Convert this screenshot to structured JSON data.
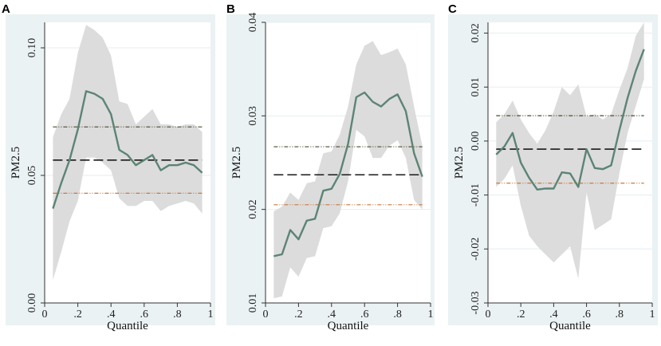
{
  "chart_data": [
    {
      "type": "line",
      "panel_label": "A",
      "xlabel": "Quantile",
      "ylabel": "PM2.5",
      "xlim": [
        0,
        1
      ],
      "ylim": [
        0,
        0.11
      ],
      "xticks": [
        0,
        0.2,
        0.4,
        0.6,
        0.8,
        1
      ],
      "xtick_labels": [
        "0",
        ".2",
        ".4",
        ".6",
        ".8",
        "1"
      ],
      "yticks": [
        0,
        0.05,
        0.1
      ],
      "ytick_labels": [
        "0.00",
        "0.05",
        "0.10"
      ],
      "grid": true,
      "x": [
        0.05,
        0.1,
        0.15,
        0.2,
        0.25,
        0.3,
        0.35,
        0.4,
        0.45,
        0.5,
        0.55,
        0.6,
        0.65,
        0.7,
        0.75,
        0.8,
        0.85,
        0.9,
        0.95
      ],
      "estimate": [
        0.037,
        0.047,
        0.056,
        0.068,
        0.083,
        0.082,
        0.08,
        0.074,
        0.06,
        0.058,
        0.054,
        0.056,
        0.058,
        0.052,
        0.054,
        0.054,
        0.055,
        0.054,
        0.051
      ],
      "ci_upper": [
        0.065,
        0.074,
        0.08,
        0.098,
        0.109,
        0.107,
        0.104,
        0.097,
        0.079,
        0.078,
        0.07,
        0.073,
        0.076,
        0.07,
        0.07,
        0.069,
        0.07,
        0.07,
        0.067
      ],
      "ci_lower": [
        0.009,
        0.02,
        0.032,
        0.04,
        0.057,
        0.057,
        0.055,
        0.052,
        0.041,
        0.038,
        0.038,
        0.04,
        0.04,
        0.036,
        0.038,
        0.039,
        0.04,
        0.039,
        0.035
      ],
      "ols_estimate": 0.056,
      "ols_upper": 0.069,
      "ols_lower": 0.043,
      "colors": {
        "line": "#5c8474",
        "band": "#dcdcdc",
        "ols": "#1a1a1a",
        "ols_upper": "#4a4a30",
        "ols_lower": "#c8793c",
        "plot_bg": "#ffffff",
        "panel_bg": "#eaf2f3"
      }
    },
    {
      "type": "line",
      "panel_label": "B",
      "xlabel": "Quantile",
      "ylabel": "PM2.5",
      "xlim": [
        0,
        1
      ],
      "ylim": [
        0.01,
        0.04
      ],
      "xticks": [
        0,
        0.2,
        0.4,
        0.6,
        0.8,
        1
      ],
      "xtick_labels": [
        "0",
        ".2",
        ".4",
        ".6",
        ".8",
        "1"
      ],
      "yticks": [
        0.01,
        0.02,
        0.03,
        0.04
      ],
      "ytick_labels": [
        "0.01",
        "0.02",
        "0.03",
        "0.04"
      ],
      "grid": true,
      "x": [
        0.05,
        0.1,
        0.15,
        0.2,
        0.25,
        0.3,
        0.35,
        0.4,
        0.45,
        0.5,
        0.55,
        0.6,
        0.65,
        0.7,
        0.75,
        0.8,
        0.85,
        0.9,
        0.95
      ],
      "estimate": [
        0.015,
        0.0152,
        0.0178,
        0.0168,
        0.0188,
        0.019,
        0.022,
        0.0222,
        0.0238,
        0.027,
        0.032,
        0.0325,
        0.0315,
        0.031,
        0.0318,
        0.0323,
        0.0305,
        0.026,
        0.0235
      ],
      "ci_upper": [
        0.0198,
        0.0203,
        0.0218,
        0.021,
        0.0228,
        0.023,
        0.026,
        0.0262,
        0.028,
        0.031,
        0.0355,
        0.0375,
        0.038,
        0.0365,
        0.0368,
        0.0372,
        0.0355,
        0.031,
        0.0268
      ],
      "ci_lower": [
        0.0105,
        0.0107,
        0.0138,
        0.0128,
        0.0148,
        0.015,
        0.018,
        0.0182,
        0.0196,
        0.023,
        0.0285,
        0.0278,
        0.0255,
        0.0255,
        0.0268,
        0.0274,
        0.0255,
        0.021,
        0.02
      ],
      "ols_estimate": 0.0237,
      "ols_upper": 0.0267,
      "ols_lower": 0.0205,
      "colors": {
        "line": "#5c8474",
        "band": "#dcdcdc",
        "ols": "#1a1a1a",
        "ols_upper": "#4a4a30",
        "ols_lower": "#c8793c",
        "plot_bg": "#ffffff",
        "panel_bg": "#eaf2f3"
      }
    },
    {
      "type": "line",
      "panel_label": "C",
      "xlabel": "Quantile",
      "ylabel": "PM2.5",
      "xlim": [
        0,
        1
      ],
      "ylim": [
        -0.03,
        0.022
      ],
      "xticks": [
        0,
        0.2,
        0.4,
        0.6,
        0.8,
        1
      ],
      "xtick_labels": [
        "0",
        ".2",
        ".4",
        ".6",
        ".8",
        "1"
      ],
      "yticks": [
        -0.03,
        -0.02,
        -0.01,
        0,
        0.01,
        0.02
      ],
      "ytick_labels": [
        "-0.03",
        "-0.02",
        "-0.01",
        "0.00",
        "0.01",
        "0.02"
      ],
      "grid": true,
      "x": [
        0.05,
        0.1,
        0.15,
        0.2,
        0.25,
        0.3,
        0.35,
        0.4,
        0.45,
        0.5,
        0.55,
        0.6,
        0.65,
        0.7,
        0.75,
        0.8,
        0.85,
        0.9,
        0.95
      ],
      "estimate": [
        -0.0025,
        -0.001,
        0.0015,
        -0.004,
        -0.0068,
        -0.009,
        -0.0088,
        -0.0088,
        -0.0058,
        -0.006,
        -0.0085,
        -0.0015,
        -0.005,
        -0.0052,
        -0.0045,
        0.002,
        0.008,
        0.013,
        0.017
      ],
      "ci_upper": [
        0.0035,
        0.005,
        0.0075,
        0.004,
        0.0015,
        -0.0005,
        0.002,
        0.0055,
        0.01,
        0.0085,
        0.0105,
        0.0045,
        0.005,
        0.004,
        0.005,
        0.0095,
        0.0135,
        0.0195,
        0.022
      ],
      "ci_lower": [
        -0.0085,
        -0.007,
        -0.0045,
        -0.012,
        -0.0175,
        -0.0195,
        -0.021,
        -0.0225,
        -0.021,
        -0.0195,
        -0.0255,
        -0.0095,
        -0.0165,
        -0.0155,
        -0.0145,
        -0.006,
        0.0015,
        0.0065,
        0.0115
      ],
      "ols_estimate": -0.0015,
      "ols_upper": 0.0047,
      "ols_lower": -0.0078,
      "colors": {
        "line": "#5c8474",
        "band": "#dcdcdc",
        "ols": "#1a1a1a",
        "ols_upper": "#4a4a30",
        "ols_lower": "#c8793c",
        "plot_bg": "#ffffff",
        "panel_bg": "#eaf2f3"
      }
    }
  ]
}
